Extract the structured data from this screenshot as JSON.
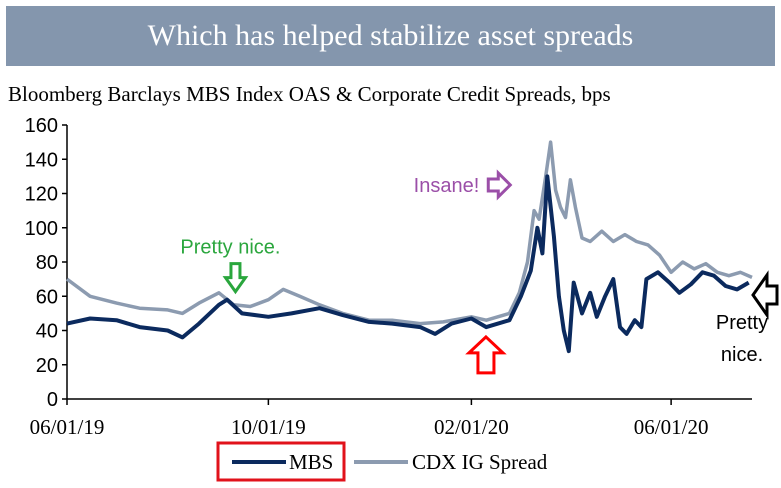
{
  "banner": {
    "title": "Which has helped stabilize asset spreads"
  },
  "chart_data": {
    "type": "line",
    "title": "Bloomberg Barclays MBS Index OAS & Corporate Credit Spreads, bps",
    "xlabel": "",
    "ylabel": "",
    "ylim": [
      0,
      160
    ],
    "yticks": [
      "0",
      "20",
      "40",
      "60",
      "80",
      "100",
      "120",
      "140",
      "160"
    ],
    "xlim": [
      "2019-06-01",
      "2020-07-20"
    ],
    "xticks": [
      {
        "date": "2019-06-01",
        "label": "06/01/19"
      },
      {
        "date": "2019-10-01",
        "label": "10/01/19"
      },
      {
        "date": "2020-02-01",
        "label": "02/01/20"
      },
      {
        "date": "2020-06-01",
        "label": "06/01/20"
      }
    ],
    "grid": false,
    "legend": {
      "placement": "bottom-center",
      "entries": [
        "MBS",
        "CDX IG Spread"
      ]
    },
    "series": [
      {
        "name": "MBS",
        "color": "#0b2a5e",
        "points": [
          [
            "2019-06-01",
            44
          ],
          [
            "2019-06-15",
            47
          ],
          [
            "2019-07-01",
            46
          ],
          [
            "2019-07-15",
            42
          ],
          [
            "2019-08-01",
            40
          ],
          [
            "2019-08-10",
            36
          ],
          [
            "2019-08-20",
            44
          ],
          [
            "2019-09-01",
            55
          ],
          [
            "2019-09-06",
            58
          ],
          [
            "2019-09-15",
            50
          ],
          [
            "2019-10-01",
            48
          ],
          [
            "2019-10-15",
            50
          ],
          [
            "2019-11-01",
            53
          ],
          [
            "2019-11-15",
            49
          ],
          [
            "2019-12-01",
            45
          ],
          [
            "2019-12-15",
            44
          ],
          [
            "2020-01-01",
            42
          ],
          [
            "2020-01-10",
            38
          ],
          [
            "2020-01-20",
            44
          ],
          [
            "2020-02-01",
            47
          ],
          [
            "2020-02-10",
            42
          ],
          [
            "2020-02-24",
            46
          ],
          [
            "2020-03-02",
            60
          ],
          [
            "2020-03-08",
            75
          ],
          [
            "2020-03-12",
            100
          ],
          [
            "2020-03-15",
            85
          ],
          [
            "2020-03-18",
            130
          ],
          [
            "2020-03-22",
            95
          ],
          [
            "2020-03-25",
            60
          ],
          [
            "2020-03-28",
            40
          ],
          [
            "2020-03-31",
            28
          ],
          [
            "2020-04-03",
            68
          ],
          [
            "2020-04-08",
            50
          ],
          [
            "2020-04-13",
            62
          ],
          [
            "2020-04-17",
            48
          ],
          [
            "2020-04-22",
            60
          ],
          [
            "2020-04-27",
            70
          ],
          [
            "2020-05-01",
            42
          ],
          [
            "2020-05-05",
            38
          ],
          [
            "2020-05-10",
            46
          ],
          [
            "2020-05-14",
            42
          ],
          [
            "2020-05-17",
            70
          ],
          [
            "2020-05-24",
            74
          ],
          [
            "2020-05-31",
            68
          ],
          [
            "2020-06-06",
            62
          ],
          [
            "2020-06-13",
            67
          ],
          [
            "2020-06-20",
            74
          ],
          [
            "2020-06-27",
            72
          ],
          [
            "2020-07-04",
            66
          ],
          [
            "2020-07-11",
            64
          ],
          [
            "2020-07-18",
            68
          ]
        ]
      },
      {
        "name": "CDX IG Spread",
        "color": "#8c9bb0",
        "points": [
          [
            "2019-06-01",
            70
          ],
          [
            "2019-06-15",
            60
          ],
          [
            "2019-07-01",
            56
          ],
          [
            "2019-07-15",
            53
          ],
          [
            "2019-08-01",
            52
          ],
          [
            "2019-08-10",
            50
          ],
          [
            "2019-08-20",
            56
          ],
          [
            "2019-09-01",
            62
          ],
          [
            "2019-09-10",
            55
          ],
          [
            "2019-09-20",
            54
          ],
          [
            "2019-10-01",
            58
          ],
          [
            "2019-10-10",
            64
          ],
          [
            "2019-10-20",
            60
          ],
          [
            "2019-11-01",
            55
          ],
          [
            "2019-11-15",
            50
          ],
          [
            "2019-12-01",
            46
          ],
          [
            "2019-12-15",
            46
          ],
          [
            "2020-01-01",
            44
          ],
          [
            "2020-01-15",
            45
          ],
          [
            "2020-02-01",
            48
          ],
          [
            "2020-02-10",
            46
          ],
          [
            "2020-02-24",
            50
          ],
          [
            "2020-03-01",
            62
          ],
          [
            "2020-03-06",
            80
          ],
          [
            "2020-03-10",
            110
          ],
          [
            "2020-03-13",
            105
          ],
          [
            "2020-03-17",
            130
          ],
          [
            "2020-03-20",
            150
          ],
          [
            "2020-03-23",
            122
          ],
          [
            "2020-03-26",
            112
          ],
          [
            "2020-03-29",
            106
          ],
          [
            "2020-04-01",
            128
          ],
          [
            "2020-04-04",
            112
          ],
          [
            "2020-04-08",
            94
          ],
          [
            "2020-04-13",
            92
          ],
          [
            "2020-04-20",
            98
          ],
          [
            "2020-04-27",
            92
          ],
          [
            "2020-05-04",
            96
          ],
          [
            "2020-05-11",
            92
          ],
          [
            "2020-05-18",
            90
          ],
          [
            "2020-05-25",
            84
          ],
          [
            "2020-06-01",
            74
          ],
          [
            "2020-06-08",
            80
          ],
          [
            "2020-06-15",
            76
          ],
          [
            "2020-06-22",
            79
          ],
          [
            "2020-06-29",
            74
          ],
          [
            "2020-07-06",
            72
          ],
          [
            "2020-07-13",
            74
          ],
          [
            "2020-07-20",
            71
          ]
        ]
      }
    ],
    "annotations": [
      {
        "text": "Pretty nice.",
        "color": "#2aa63d",
        "arrow": "down",
        "at": [
          "2019-09-05",
          58
        ]
      },
      {
        "text": "Insane!",
        "color": "#9b4fa8",
        "arrow": "right",
        "at": [
          "2020-03-01",
          125
        ]
      },
      {
        "text": "",
        "color": "#ff0000",
        "arrow": "up",
        "at": [
          "2020-02-08",
          38
        ]
      },
      {
        "text": "Pretty\nnice.",
        "color": "#000000",
        "arrow": "left",
        "at": [
          "2020-07-20",
          66
        ]
      }
    ]
  }
}
